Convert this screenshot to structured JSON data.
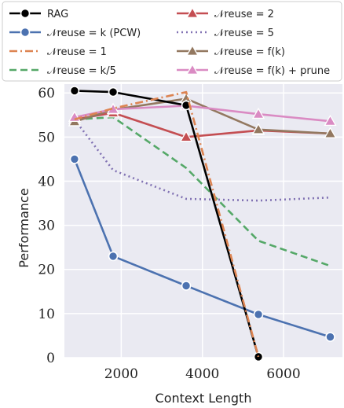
{
  "chart_data": {
    "type": "line",
    "xlabel": "Context Length",
    "ylabel": "Performance",
    "xlim": [
      600,
      7450
    ],
    "ylim": [
      0,
      62
    ],
    "x_ticks": [
      2000,
      4000,
      6000
    ],
    "y_ticks": [
      0,
      10,
      20,
      30,
      40,
      50,
      60
    ],
    "grid": true,
    "legend_position": "top",
    "series": [
      {
        "name": "RAG",
        "color": "#000000",
        "dash": "solid",
        "marker": "circle",
        "x": [
          850,
          1800,
          3600,
          5380
        ],
        "y": [
          60.5,
          60.2,
          57.2,
          0.2
        ]
      },
      {
        "name": "𝒩reuse = k (PCW)",
        "color": "#4c72b0",
        "dash": "solid",
        "marker": "circle",
        "x": [
          850,
          1800,
          3600,
          5380,
          7150
        ],
        "y": [
          45.0,
          23.0,
          16.3,
          9.8,
          4.7
        ]
      },
      {
        "name": "𝒩reuse = 1",
        "color": "#dd8452",
        "dash": "dashdot",
        "marker": "none",
        "x": [
          850,
          1800,
          3600,
          5380
        ],
        "y": [
          54.0,
          56.5,
          60.2,
          0.2
        ]
      },
      {
        "name": "𝒩reuse = k/5",
        "color": "#55a868",
        "dash": "dashed",
        "marker": "none",
        "x": [
          850,
          1800,
          3600,
          5380,
          7150
        ],
        "y": [
          54.0,
          54.5,
          43.0,
          26.5,
          20.8
        ]
      },
      {
        "name": "𝒩reuse = 2",
        "color": "#c44e52",
        "dash": "solid",
        "marker": "triangle",
        "x": [
          850,
          1800,
          3600,
          5380,
          7150
        ],
        "y": [
          54.0,
          55.5,
          50.0,
          51.5,
          50.8
        ]
      },
      {
        "name": "𝒩reuse = 5",
        "color": "#8172b3",
        "dash": "dotted",
        "marker": "none",
        "x": [
          850,
          1800,
          3600,
          5380,
          7150
        ],
        "y": [
          54.0,
          42.5,
          36.0,
          35.6,
          36.3
        ]
      },
      {
        "name": "𝒩reuse = f(k)",
        "color": "#937860",
        "dash": "solid",
        "marker": "triangle",
        "x": [
          850,
          1800,
          3600,
          5380,
          7150
        ],
        "y": [
          53.5,
          56.2,
          58.7,
          51.7,
          50.8
        ]
      },
      {
        "name": "𝒩reuse = f(k) + prune",
        "color": "#da8bc3",
        "dash": "solid",
        "marker": "triangle",
        "x": [
          850,
          1800,
          3600,
          5380,
          7150
        ],
        "y": [
          54.5,
          56.3,
          57.1,
          55.2,
          53.6
        ]
      }
    ]
  }
}
